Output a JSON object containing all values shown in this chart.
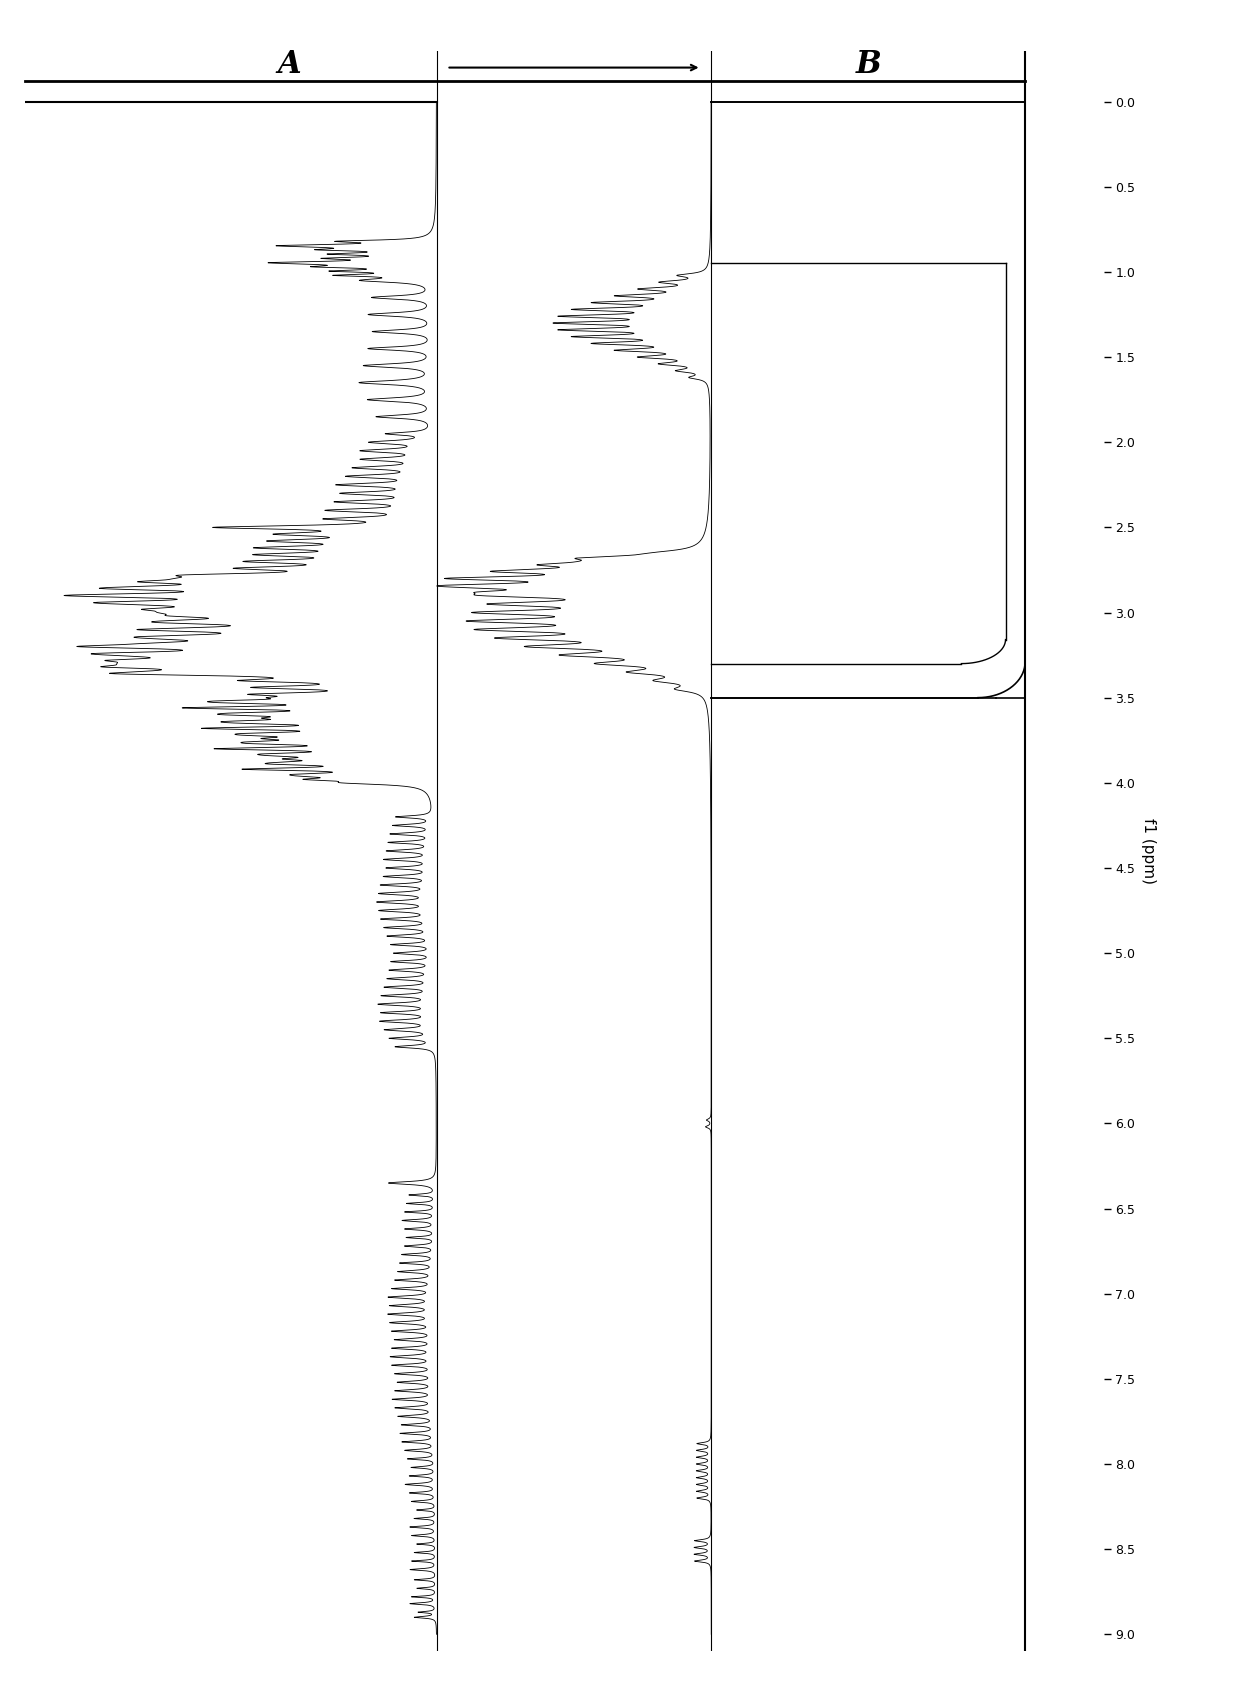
{
  "xlabel": "f1 (ppm)",
  "background_color": "#ffffff",
  "label_A": "A",
  "label_B": "B",
  "line_color": "#000000",
  "tick_positions": [
    0.0,
    0.5,
    1.0,
    1.5,
    2.0,
    2.5,
    3.0,
    3.5,
    4.0,
    4.5,
    5.0,
    5.5,
    6.0,
    6.5,
    7.0,
    7.5,
    8.0,
    8.5,
    9.0
  ],
  "ppm_min": 0.0,
  "ppm_max": 9.0
}
